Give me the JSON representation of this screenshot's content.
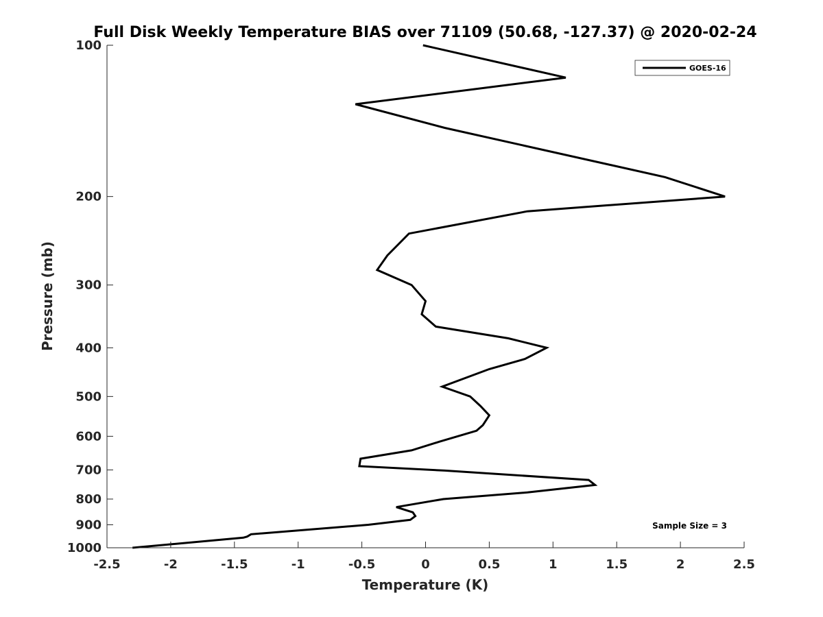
{
  "chart_data": {
    "type": "line",
    "title": "Full Disk Weekly Temperature BIAS over 71109 (50.68, -127.37) @ 2020-02-24",
    "xlabel": "Temperature (K)",
    "ylabel": "Pressure (mb)",
    "xlim": [
      -2.5,
      2.5
    ],
    "ylim": [
      100,
      1000
    ],
    "y_scale": "log",
    "y_reversed": true,
    "x_ticks": [
      -2.5,
      -2,
      -1.5,
      -1,
      -0.5,
      0,
      0.5,
      1,
      1.5,
      2,
      2.5
    ],
    "x_tick_labels": [
      "-2.5",
      "-2",
      "-1.5",
      "-1",
      "-0.5",
      "0",
      "0.5",
      "1",
      "1.5",
      "2",
      "2.5"
    ],
    "y_ticks": [
      100,
      200,
      300,
      400,
      500,
      600,
      700,
      800,
      900,
      1000
    ],
    "y_tick_labels": [
      "100",
      "200",
      "300",
      "400",
      "500",
      "600",
      "700",
      "800",
      "900",
      "1000"
    ],
    "grid": false,
    "legend_position": "top-right",
    "annotation": "Sample Size = 3",
    "series": [
      {
        "name": "GOES-16",
        "color": "#000000",
        "points": [
          {
            "x": -0.02,
            "y": 100
          },
          {
            "x": 1.1,
            "y": 116
          },
          {
            "x": -0.55,
            "y": 131
          },
          {
            "x": 0.15,
            "y": 146
          },
          {
            "x": 1.88,
            "y": 183
          },
          {
            "x": 2.35,
            "y": 200
          },
          {
            "x": 0.8,
            "y": 214
          },
          {
            "x": -0.13,
            "y": 237
          },
          {
            "x": -0.3,
            "y": 262
          },
          {
            "x": -0.38,
            "y": 280
          },
          {
            "x": -0.11,
            "y": 300
          },
          {
            "x": 0.0,
            "y": 323
          },
          {
            "x": -0.03,
            "y": 343
          },
          {
            "x": 0.08,
            "y": 363
          },
          {
            "x": 0.65,
            "y": 383
          },
          {
            "x": 0.95,
            "y": 400
          },
          {
            "x": 0.78,
            "y": 421
          },
          {
            "x": 0.5,
            "y": 441
          },
          {
            "x": 0.13,
            "y": 478
          },
          {
            "x": 0.35,
            "y": 500
          },
          {
            "x": 0.43,
            "y": 522
          },
          {
            "x": 0.5,
            "y": 545
          },
          {
            "x": 0.45,
            "y": 570
          },
          {
            "x": 0.4,
            "y": 585
          },
          {
            "x": 0.11,
            "y": 615
          },
          {
            "x": -0.11,
            "y": 640
          },
          {
            "x": -0.51,
            "y": 665
          },
          {
            "x": -0.52,
            "y": 688
          },
          {
            "x": 0.15,
            "y": 702
          },
          {
            "x": 1.28,
            "y": 733
          },
          {
            "x": 1.33,
            "y": 750
          },
          {
            "x": 0.8,
            "y": 776
          },
          {
            "x": 0.14,
            "y": 800
          },
          {
            "x": -0.23,
            "y": 830
          },
          {
            "x": -0.1,
            "y": 850
          },
          {
            "x": -0.08,
            "y": 865
          },
          {
            "x": -0.12,
            "y": 880
          },
          {
            "x": -0.45,
            "y": 900
          },
          {
            "x": -1.37,
            "y": 940
          },
          {
            "x": -1.4,
            "y": 950
          },
          {
            "x": -1.43,
            "y": 955
          },
          {
            "x": -2.3,
            "y": 1000
          }
        ]
      }
    ]
  }
}
